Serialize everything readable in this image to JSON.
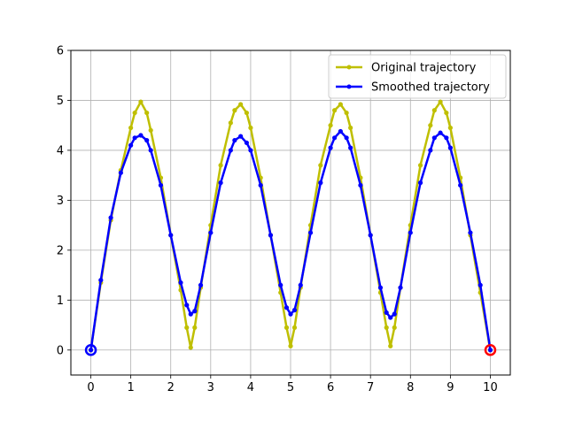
{
  "chart_data": {
    "type": "line",
    "title": "",
    "xlabel": "",
    "ylabel": "",
    "xlim": [
      -0.5,
      10.5
    ],
    "ylim": [
      -0.5,
      6
    ],
    "xticks": [
      "0",
      "1",
      "2",
      "3",
      "4",
      "5",
      "6",
      "7",
      "8",
      "9",
      "10"
    ],
    "yticks": [
      "0",
      "1",
      "2",
      "3",
      "4",
      "5",
      "6"
    ],
    "grid": true,
    "legend_position": "top-right",
    "series": [
      {
        "name": "Original trajectory",
        "color": "#bfbf00",
        "marker": "dot",
        "x": [
          0,
          0.25,
          0.5,
          0.75,
          1.0,
          1.1,
          1.25,
          1.4,
          1.5,
          1.75,
          2.0,
          2.25,
          2.4,
          2.5,
          2.6,
          2.75,
          3.0,
          3.25,
          3.5,
          3.6,
          3.75,
          3.9,
          4.0,
          4.25,
          4.5,
          4.75,
          4.9,
          5.0,
          5.1,
          5.25,
          5.5,
          5.75,
          6.0,
          6.1,
          6.25,
          6.4,
          6.5,
          6.75,
          7.0,
          7.25,
          7.4,
          7.5,
          7.6,
          7.75,
          8.0,
          8.25,
          8.5,
          8.6,
          8.75,
          8.9,
          9.0,
          9.25,
          9.5,
          9.75,
          10.0
        ],
        "y": [
          0.0,
          1.35,
          2.6,
          3.6,
          4.45,
          4.75,
          4.97,
          4.75,
          4.4,
          3.45,
          2.3,
          1.2,
          0.45,
          0.05,
          0.45,
          1.25,
          2.5,
          3.7,
          4.55,
          4.8,
          4.92,
          4.75,
          4.45,
          3.45,
          2.3,
          1.15,
          0.45,
          0.08,
          0.45,
          1.25,
          2.5,
          3.7,
          4.5,
          4.8,
          4.92,
          4.75,
          4.45,
          3.45,
          2.3,
          1.15,
          0.45,
          0.08,
          0.45,
          1.25,
          2.5,
          3.7,
          4.5,
          4.8,
          4.97,
          4.75,
          4.45,
          3.45,
          2.3,
          1.15,
          0.0
        ]
      },
      {
        "name": "Smoothed trajectory",
        "color": "#0000ff",
        "marker": "dot",
        "x": [
          0,
          0.25,
          0.5,
          0.75,
          1.0,
          1.1,
          1.25,
          1.4,
          1.5,
          1.75,
          2.0,
          2.25,
          2.4,
          2.5,
          2.6,
          2.75,
          3.0,
          3.25,
          3.5,
          3.6,
          3.75,
          3.9,
          4.0,
          4.25,
          4.5,
          4.75,
          4.9,
          5.0,
          5.1,
          5.25,
          5.5,
          5.75,
          6.0,
          6.1,
          6.25,
          6.4,
          6.5,
          6.75,
          7.0,
          7.25,
          7.4,
          7.5,
          7.6,
          7.75,
          8.0,
          8.25,
          8.5,
          8.6,
          8.75,
          8.9,
          9.0,
          9.25,
          9.5,
          9.75,
          10.0
        ],
        "y": [
          0.0,
          1.4,
          2.65,
          3.55,
          4.1,
          4.25,
          4.3,
          4.2,
          4.0,
          3.3,
          2.3,
          1.35,
          0.9,
          0.72,
          0.78,
          1.3,
          2.35,
          3.35,
          4.0,
          4.2,
          4.28,
          4.15,
          4.0,
          3.3,
          2.3,
          1.3,
          0.85,
          0.72,
          0.8,
          1.3,
          2.35,
          3.35,
          4.05,
          4.25,
          4.38,
          4.25,
          4.05,
          3.3,
          2.3,
          1.25,
          0.75,
          0.65,
          0.72,
          1.25,
          2.35,
          3.35,
          4.0,
          4.25,
          4.35,
          4.25,
          4.05,
          3.3,
          2.35,
          1.3,
          0.0
        ]
      }
    ],
    "endpoints": [
      {
        "x": 0,
        "y": 0,
        "color": "#0000ff"
      },
      {
        "x": 10,
        "y": 0,
        "color": "#ff0000"
      }
    ]
  }
}
